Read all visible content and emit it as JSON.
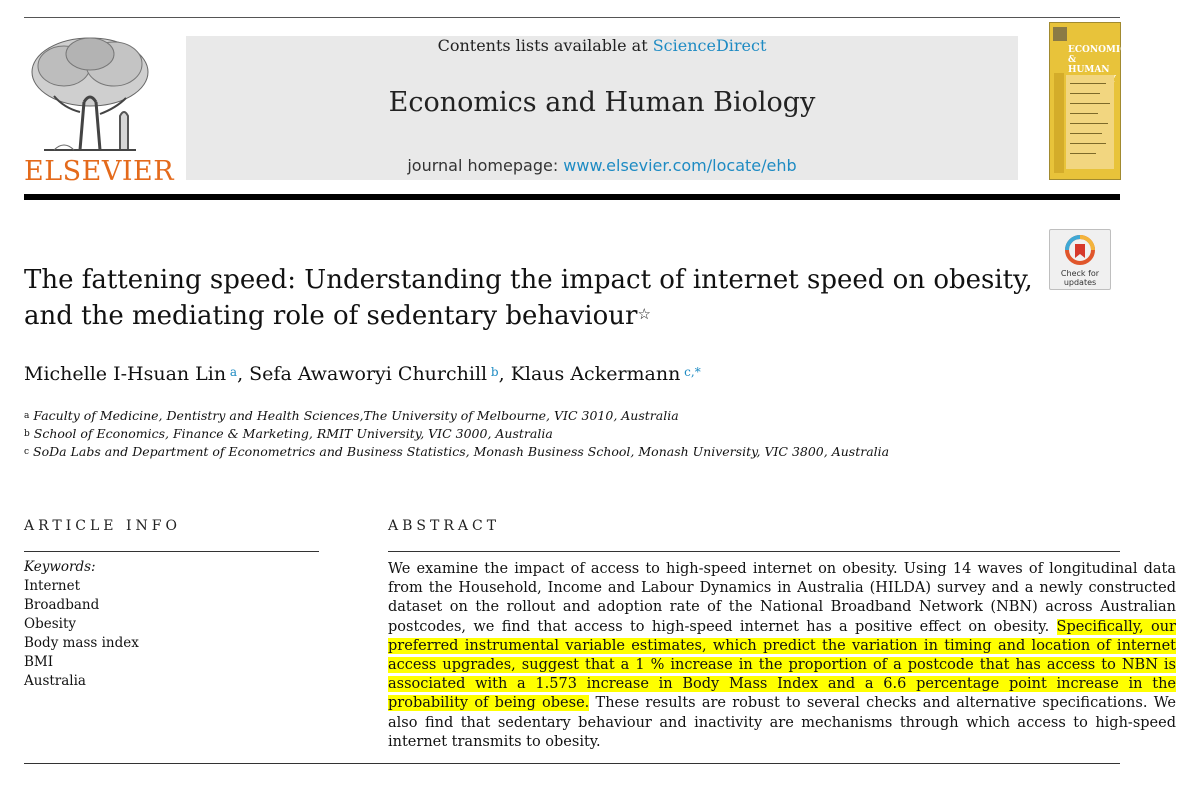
{
  "header": {
    "contents_prefix": "Contents lists available at ",
    "contents_link": "ScienceDirect",
    "journal_title": "Economics and Human Biology",
    "homepage_prefix": "journal homepage: ",
    "homepage_link": "www.elsevier.com/locate/ehb",
    "publisher_logo_text": "ELSEVIER",
    "cover_title": "ECONOMICS & HUMAN BIOLOGY"
  },
  "check_updates": {
    "line1": "Check for",
    "line2": "updates"
  },
  "article": {
    "title": "The fattening speed: Understanding the impact of internet speed on obesity, and the mediating role of sedentary behaviour",
    "title_note": "☆",
    "authors": [
      {
        "name": "Michelle I-Hsuan Lin",
        "sup": "a",
        "sep": ", "
      },
      {
        "name": "Sefa Awaworyi Churchill",
        "sup": "b",
        "sep": ", "
      },
      {
        "name": "Klaus Ackermann",
        "sup": "c,*",
        "sep": ""
      }
    ],
    "affiliations": [
      {
        "mark": "a",
        "text": "Faculty of Medicine, Dentistry and Health Sciences,The University of Melbourne, VIC 3010, Australia"
      },
      {
        "mark": "b",
        "text": "School of Economics, Finance & Marketing, RMIT University, VIC 3000, Australia"
      },
      {
        "mark": "c",
        "text": "SoDa Labs and Department of Econometrics and Business Statistics, Monash Business School, Monash University, VIC 3800, Australia"
      }
    ]
  },
  "article_info": {
    "heading": "ARTICLE INFO",
    "keywords_label": "Keywords:",
    "keywords": [
      "Internet",
      "Broadband",
      "Obesity",
      "Body mass index",
      "BMI",
      "Australia"
    ]
  },
  "abstract": {
    "heading": "ABSTRACT",
    "part1": "We examine the impact of access to high-speed internet on obesity. Using 14 waves of longitudinal data from the Household, Income and Labour Dynamics in Australia (HILDA) survey and a newly constructed dataset on the rollout and adoption rate of the National Broadband Network (NBN) across Australian postcodes, we find that access to high-speed internet has a positive effect on obesity. ",
    "highlighted": "Specifically, our preferred instrumental variable estimates, which predict the variation in timing and location of internet access upgrades, suggest that a 1 % increase in the proportion of a postcode that has access to NBN is associated with a 1.573 increase in Body Mass Index and a 6.6 percentage point increase in the probability of being obese.",
    "part2": " These results are robust to several checks and alternative specifications. We also find that sedentary behaviour and inactivity are mechanisms through which access to high-speed internet transmits to obesity.",
    "highlight_color": "#ffff00"
  },
  "colors": {
    "link": "#1e8bc3",
    "elsevier_orange": "#e46a1b",
    "cover_yellow": "#e8c33a"
  }
}
